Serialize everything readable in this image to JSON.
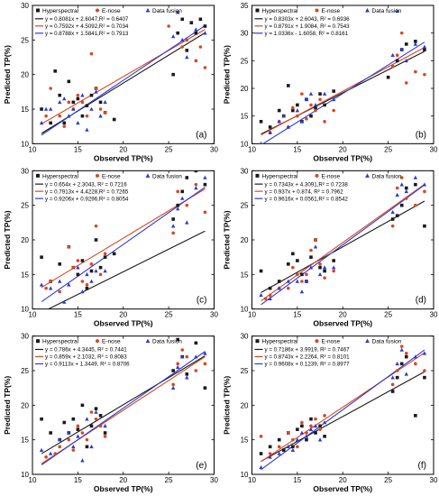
{
  "figure": {
    "legend_labels": [
      "Hyperspectral",
      "E-nose",
      "Data fusion"
    ],
    "series_colors": [
      "#1a1a1a",
      "#d9471f",
      "#2b3bd6"
    ],
    "markers": [
      "square",
      "circle",
      "triangle"
    ]
  },
  "chart_data": [
    {
      "type": "scatter",
      "panel_label": "(a)",
      "xlabel": "Observed TP(%)",
      "ylabel": "Predicted TP(%)",
      "xlim": [
        10,
        30
      ],
      "ylim": [
        10,
        30
      ],
      "xticks": [
        "10",
        "15",
        "20",
        "25",
        "30"
      ],
      "yticks": [
        "10",
        "15",
        "20",
        "25",
        "30"
      ],
      "equations": [
        "y = 0.8081x + 2.6047,R² = 0.6407",
        "y = 0.7592x + 4.5092,R² = 0.7034",
        "y = 0.8788x + 1.5841,R² = 0.7913"
      ],
      "lines": [
        {
          "slope": 0.8081,
          "intercept": 2.6047
        },
        {
          "slope": 0.7592,
          "intercept": 4.5092
        },
        {
          "slope": 0.8788,
          "intercept": 1.5841
        }
      ],
      "series": [
        {
          "name": "Hyperspectral",
          "x": [
            11,
            12,
            12.5,
            13,
            13.5,
            14,
            14.5,
            15,
            15.5,
            16,
            16.5,
            17,
            17.5,
            18,
            19,
            25.5,
            26,
            26.5,
            27,
            27.5,
            28,
            28.5,
            29
          ],
          "y": [
            15,
            13,
            20.5,
            17,
            13,
            19,
            16,
            16.5,
            14,
            15.5,
            17,
            18,
            16,
            14.5,
            13.5,
            20,
            26,
            28,
            23.5,
            27.5,
            26,
            28,
            27
          ]
        },
        {
          "name": "E-nose",
          "x": [
            11.5,
            12,
            13,
            13.5,
            14,
            14.5,
            15,
            15.5,
            16,
            16.5,
            17,
            17.5,
            18,
            25,
            26,
            26.5,
            27,
            28,
            28.5,
            29
          ],
          "y": [
            14,
            18,
            14,
            12.5,
            16,
            15,
            17,
            16,
            14,
            23,
            18,
            15,
            14.5,
            27,
            29,
            24,
            25,
            22,
            24,
            21
          ]
        },
        {
          "name": "Data fusion",
          "x": [
            11,
            11.5,
            12,
            13,
            13.5,
            14,
            14.5,
            15,
            15.5,
            16,
            16.5,
            17,
            17.5,
            18,
            25.5,
            26,
            26.5,
            27,
            28,
            29
          ],
          "y": [
            13,
            15,
            15,
            16,
            16.5,
            14,
            15,
            13,
            17,
            12,
            15,
            17.5,
            14,
            16,
            25.5,
            29,
            25,
            22.5,
            26.5,
            26
          ]
        }
      ]
    },
    {
      "type": "scatter",
      "panel_label": "(b)",
      "xlabel": "Observed TP(%)",
      "ylabel": "Predicted TP(%)",
      "xlim": [
        10,
        30
      ],
      "ylim": [
        10,
        35
      ],
      "xticks": [
        "10",
        "15",
        "20",
        "25",
        "30"
      ],
      "yticks": [
        "10",
        "15",
        "20",
        "25",
        "30",
        "35"
      ],
      "equations": [
        "y = 0.8303x + 2.6043, R² = 0.6936",
        "y = 0.8791x + 1.9084, R² = 0.7543",
        "y = 1.0336x - 1.6058, R² = 0.8161"
      ],
      "lines": [
        {
          "slope": 0.8303,
          "intercept": 2.6043
        },
        {
          "slope": 0.8791,
          "intercept": 1.9084
        },
        {
          "slope": 1.0336,
          "intercept": -1.6058
        }
      ],
      "series": [
        {
          "name": "Hyperspectral",
          "x": [
            11,
            12,
            13,
            13.5,
            14,
            14.5,
            15,
            15.5,
            16,
            16.5,
            17,
            17.5,
            18,
            19,
            25,
            26,
            26.5,
            27,
            28,
            29
          ],
          "y": [
            14,
            13,
            16,
            15,
            20.5,
            16,
            17,
            14,
            18,
            15,
            16.5,
            19,
            17,
            19.5,
            22,
            25,
            27,
            28,
            28.5,
            27
          ]
        },
        {
          "name": "E-nose",
          "x": [
            12,
            13,
            14,
            14.5,
            15,
            15.5,
            16,
            16.5,
            17,
            17.5,
            18,
            19,
            25.5,
            26,
            26.5,
            27,
            28,
            29
          ],
          "y": [
            12,
            14,
            13,
            16.5,
            15,
            19,
            14.5,
            17,
            16,
            18,
            14,
            16,
            24,
            26,
            30,
            21,
            23,
            22.5
          ]
        },
        {
          "name": "Data fusion",
          "x": [
            11,
            12,
            13,
            13.5,
            14,
            15,
            15.5,
            16,
            16.5,
            17,
            18,
            19,
            25.5,
            26,
            26.5,
            27,
            28,
            29
          ],
          "y": [
            10,
            12,
            14,
            15,
            13,
            16,
            14,
            18,
            19,
            17,
            19,
            18,
            26,
            34,
            27,
            25,
            28,
            27.5
          ]
        }
      ]
    },
    {
      "type": "scatter",
      "panel_label": "(c)",
      "xlabel": "Observed TP(%)",
      "ylabel": "Predicted TP(%)",
      "xlim": [
        10,
        30
      ],
      "ylim": [
        10,
        30
      ],
      "xticks": [
        "10",
        "15",
        "20",
        "25",
        "30"
      ],
      "yticks": [
        "10",
        "15",
        "20",
        "25",
        "30"
      ],
      "equations": [
        "y = 0.654x + 2.3043, R² = 0.7216",
        "y = 0.7913x + 4.4228,R² = 0.7265",
        "y = 0.9206x + 0.9296,R² = 0.8054"
      ],
      "lines": [
        {
          "slope": 0.654,
          "intercept": 2.3043
        },
        {
          "slope": 0.7913,
          "intercept": 4.4228
        },
        {
          "slope": 0.9206,
          "intercept": 0.9296
        }
      ],
      "series": [
        {
          "name": "Hyperspectral",
          "x": [
            11,
            12,
            13,
            14,
            14.5,
            15,
            15.5,
            16,
            16.5,
            17,
            17.5,
            18,
            19,
            25.5,
            26,
            26.5,
            27,
            28,
            29
          ],
          "y": [
            17.5,
            14,
            16.5,
            19,
            16,
            15,
            17,
            13,
            15.5,
            20,
            16,
            17.5,
            18,
            23,
            25,
            27,
            29,
            30,
            28
          ]
        },
        {
          "name": "E-nose",
          "x": [
            11.5,
            12,
            13,
            14,
            14.5,
            15,
            15.5,
            16,
            16.5,
            17,
            17.5,
            18,
            25.5,
            26,
            27,
            28,
            29
          ],
          "y": [
            13,
            14,
            12.5,
            19,
            16,
            17,
            14,
            13.5,
            16.5,
            22,
            15,
            18,
            21,
            27,
            25,
            28,
            24
          ]
        },
        {
          "name": "Data fusion",
          "x": [
            11,
            12,
            13,
            13.5,
            14,
            15,
            15.5,
            16,
            16.5,
            17,
            18,
            25.5,
            26,
            26.5,
            27,
            28,
            29
          ],
          "y": [
            13.5,
            13,
            14,
            11,
            13.5,
            16,
            12.5,
            15,
            14,
            15.5,
            15.5,
            22,
            24.5,
            26,
            22.5,
            27.5,
            29
          ]
        }
      ]
    },
    {
      "type": "scatter",
      "panel_label": "(d)",
      "xlabel": "Observed TP(%)",
      "ylabel": "Predicted TP(%)",
      "xlim": [
        10,
        30
      ],
      "ylim": [
        10,
        30
      ],
      "xticks": [
        "10",
        "15",
        "20",
        "25",
        "30"
      ],
      "yticks": [
        "10",
        "15",
        "20",
        "25",
        "30"
      ],
      "equations": [
        "y = 0.7343x + 4.3091,R² = 0.7238",
        "y = 0.937x + 0.874, R² = 0.7962",
        "y = 0.9616x + 0.0561,R² = 0.8542"
      ],
      "lines": [
        {
          "slope": 0.7343,
          "intercept": 4.3091
        },
        {
          "slope": 0.937,
          "intercept": 0.874
        },
        {
          "slope": 0.9616,
          "intercept": 0.0561
        }
      ],
      "series": [
        {
          "name": "Hyperspectral",
          "x": [
            11,
            12,
            13,
            14,
            14.5,
            15,
            15.5,
            16,
            16.5,
            17,
            17.5,
            18,
            19,
            25.5,
            26,
            26.5,
            27,
            28,
            29
          ],
          "y": [
            15.5,
            13,
            14,
            16.5,
            18,
            17,
            15,
            14,
            17.5,
            20,
            16,
            15.5,
            17,
            23,
            23.5,
            25,
            27.5,
            28,
            22
          ]
        },
        {
          "name": "E-nose",
          "x": [
            11.5,
            12,
            13,
            14,
            14.5,
            15,
            15.5,
            16,
            16.5,
            17,
            17.5,
            18,
            19,
            25.5,
            26,
            26.5,
            27,
            28,
            29
          ],
          "y": [
            11.5,
            12,
            13,
            13,
            16,
            15,
            14,
            15,
            18.5,
            20,
            16.5,
            14.5,
            15.5,
            22,
            27.5,
            29,
            26,
            25,
            27
          ]
        },
        {
          "name": "Data fusion",
          "x": [
            11,
            12,
            13,
            14,
            15,
            15.5,
            16,
            16.5,
            17,
            17.5,
            18,
            19,
            25.5,
            26,
            26.5,
            27,
            28,
            29
          ],
          "y": [
            12,
            11.5,
            13,
            14,
            14,
            12.5,
            14,
            16,
            19,
            15,
            16,
            16,
            24,
            26.5,
            28,
            27,
            29,
            28
          ]
        }
      ]
    },
    {
      "type": "scatter",
      "panel_label": "(e)",
      "xlabel": "Observed TP(%)",
      "ylabel": "Predicted TP(%)",
      "xlim": [
        10,
        30
      ],
      "ylim": [
        10,
        30
      ],
      "xticks": [
        "10",
        "15",
        "20",
        "25",
        "30"
      ],
      "yticks": [
        "10",
        "15",
        "20",
        "25",
        "30"
      ],
      "equations": [
        "y = 0.786x + 4.3445, R² = 0.7441",
        "y = 0.859x + 2.1032, R² = 0.8083",
        "y = 0.9113x + 1.3449, R² = 0.8706"
      ],
      "lines": [
        {
          "slope": 0.786,
          "intercept": 4.3445
        },
        {
          "slope": 0.859,
          "intercept": 2.1032
        },
        {
          "slope": 0.9113,
          "intercept": 1.3449
        }
      ],
      "series": [
        {
          "name": "Hyperspectral",
          "x": [
            11,
            12,
            13,
            13.5,
            14,
            14.5,
            15,
            15.5,
            16,
            16.5,
            17,
            17.5,
            18,
            25.5,
            26,
            26.5,
            27,
            28,
            29
          ],
          "y": [
            18,
            16,
            15,
            17.5,
            16,
            18,
            16.5,
            20,
            14,
            17,
            19.5,
            18.5,
            16,
            25,
            29.5,
            27,
            24.5,
            29,
            22.5
          ]
        },
        {
          "name": "E-nose",
          "x": [
            11.5,
            12.5,
            13,
            14,
            14.5,
            15,
            15.5,
            16,
            16.5,
            17,
            17.5,
            18,
            25.5,
            26,
            26.5,
            27,
            28,
            29
          ],
          "y": [
            12.5,
            13,
            14,
            15,
            13.5,
            17,
            16,
            15,
            19,
            18,
            17,
            15.5,
            23,
            26,
            28,
            27,
            25,
            26
          ]
        },
        {
          "name": "Data fusion",
          "x": [
            11,
            12,
            13,
            14,
            14.5,
            15,
            15.5,
            16,
            16.5,
            17,
            18,
            25.5,
            26,
            26.5,
            27,
            28,
            29
          ],
          "y": [
            13.5,
            13,
            15,
            16,
            14,
            15.5,
            12,
            18,
            14,
            19,
            17,
            22.5,
            25.5,
            27,
            24,
            27,
            27.5
          ]
        }
      ]
    },
    {
      "type": "scatter",
      "panel_label": "(f)",
      "xlabel": "Observed TP(%)",
      "ylabel": "Predicted TP(%)",
      "xlim": [
        10,
        30
      ],
      "ylim": [
        10,
        30
      ],
      "xticks": [
        "10",
        "15",
        "20",
        "25",
        "30"
      ],
      "yticks": [
        "10",
        "15",
        "20",
        "25",
        "30"
      ],
      "equations": [
        "y = 0.7186x + 3.9919, R² = 0.7467",
        "y = 0.8743x + 2.2264, R² = 0.8101",
        "y = 0.9608x + 0.1239, R² = 0.8977"
      ],
      "lines": [
        {
          "slope": 0.7186,
          "intercept": 3.9919
        },
        {
          "slope": 0.8743,
          "intercept": 2.2264
        },
        {
          "slope": 0.9608,
          "intercept": 0.1239
        }
      ],
      "series": [
        {
          "name": "Hyperspectral",
          "x": [
            11,
            12,
            13,
            13.5,
            14,
            14.5,
            15,
            15.5,
            16,
            16.5,
            17,
            17.5,
            18,
            25.5,
            26,
            26.5,
            27,
            28,
            29
          ],
          "y": [
            13,
            14,
            15,
            13.5,
            16,
            14,
            16.5,
            17,
            15,
            18,
            16,
            17,
            15.5,
            22,
            24,
            26,
            27,
            18.5,
            24
          ]
        },
        {
          "name": "E-nose",
          "x": [
            11,
            12,
            13,
            14,
            14.5,
            15,
            15.5,
            16,
            16.5,
            17,
            17.5,
            18,
            25.5,
            26,
            26.5,
            27,
            28,
            29
          ],
          "y": [
            15.5,
            13,
            14,
            16,
            15,
            14,
            17.5,
            16,
            17,
            18,
            16.5,
            18.5,
            23,
            25,
            28.5,
            27.5,
            26,
            25
          ]
        },
        {
          "name": "Data fusion",
          "x": [
            11,
            12,
            13,
            14,
            14.5,
            15,
            15.5,
            16,
            16.5,
            17,
            17.5,
            18,
            25.5,
            26,
            26.5,
            27,
            28,
            29
          ],
          "y": [
            11,
            12.5,
            13,
            14,
            13.5,
            15,
            16,
            15.5,
            16.5,
            17,
            15,
            17.5,
            24,
            26,
            28,
            24.5,
            27,
            27.5
          ]
        }
      ]
    }
  ]
}
